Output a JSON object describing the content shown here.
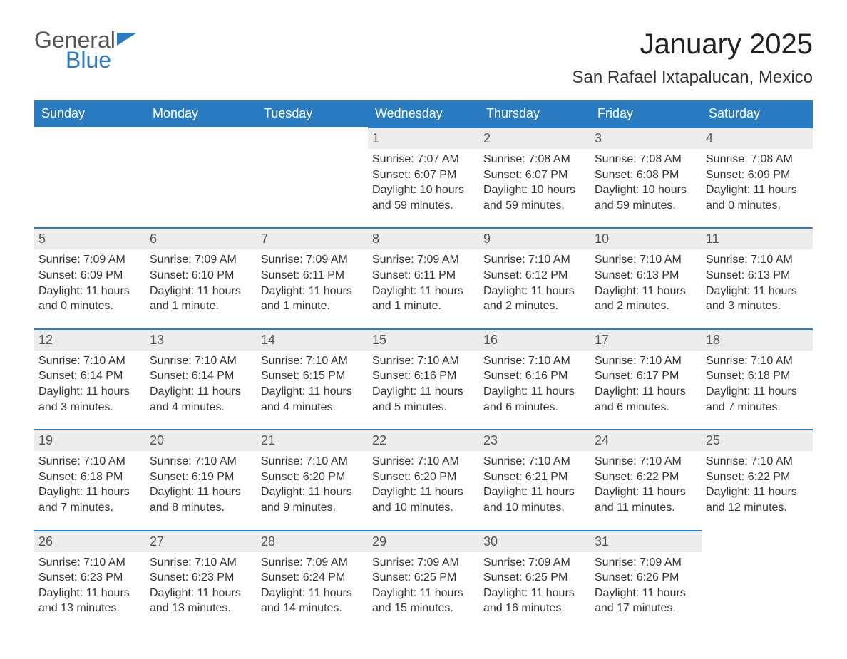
{
  "logo": {
    "textA": "General",
    "textB": "Blue"
  },
  "title": "January 2025",
  "location": "San Rafael Ixtapalucan, Mexico",
  "colors": {
    "accent": "#2a7bbf",
    "row_band": "#ececec",
    "text": "#333333",
    "bg": "#ffffff"
  },
  "typography": {
    "title_fontsize": 40,
    "location_fontsize": 24,
    "dow_fontsize": 18,
    "cell_fontsize": 16
  },
  "dow": [
    "Sunday",
    "Monday",
    "Tuesday",
    "Wednesday",
    "Thursday",
    "Friday",
    "Saturday"
  ],
  "leading_blanks": 3,
  "days": [
    {
      "n": "1",
      "sunrise": "Sunrise: 7:07 AM",
      "sunset": "Sunset: 6:07 PM",
      "daylight": "Daylight: 10 hours and 59 minutes."
    },
    {
      "n": "2",
      "sunrise": "Sunrise: 7:08 AM",
      "sunset": "Sunset: 6:07 PM",
      "daylight": "Daylight: 10 hours and 59 minutes."
    },
    {
      "n": "3",
      "sunrise": "Sunrise: 7:08 AM",
      "sunset": "Sunset: 6:08 PM",
      "daylight": "Daylight: 10 hours and 59 minutes."
    },
    {
      "n": "4",
      "sunrise": "Sunrise: 7:08 AM",
      "sunset": "Sunset: 6:09 PM",
      "daylight": "Daylight: 11 hours and 0 minutes."
    },
    {
      "n": "5",
      "sunrise": "Sunrise: 7:09 AM",
      "sunset": "Sunset: 6:09 PM",
      "daylight": "Daylight: 11 hours and 0 minutes."
    },
    {
      "n": "6",
      "sunrise": "Sunrise: 7:09 AM",
      "sunset": "Sunset: 6:10 PM",
      "daylight": "Daylight: 11 hours and 1 minute."
    },
    {
      "n": "7",
      "sunrise": "Sunrise: 7:09 AM",
      "sunset": "Sunset: 6:11 PM",
      "daylight": "Daylight: 11 hours and 1 minute."
    },
    {
      "n": "8",
      "sunrise": "Sunrise: 7:09 AM",
      "sunset": "Sunset: 6:11 PM",
      "daylight": "Daylight: 11 hours and 1 minute."
    },
    {
      "n": "9",
      "sunrise": "Sunrise: 7:10 AM",
      "sunset": "Sunset: 6:12 PM",
      "daylight": "Daylight: 11 hours and 2 minutes."
    },
    {
      "n": "10",
      "sunrise": "Sunrise: 7:10 AM",
      "sunset": "Sunset: 6:13 PM",
      "daylight": "Daylight: 11 hours and 2 minutes."
    },
    {
      "n": "11",
      "sunrise": "Sunrise: 7:10 AM",
      "sunset": "Sunset: 6:13 PM",
      "daylight": "Daylight: 11 hours and 3 minutes."
    },
    {
      "n": "12",
      "sunrise": "Sunrise: 7:10 AM",
      "sunset": "Sunset: 6:14 PM",
      "daylight": "Daylight: 11 hours and 3 minutes."
    },
    {
      "n": "13",
      "sunrise": "Sunrise: 7:10 AM",
      "sunset": "Sunset: 6:14 PM",
      "daylight": "Daylight: 11 hours and 4 minutes."
    },
    {
      "n": "14",
      "sunrise": "Sunrise: 7:10 AM",
      "sunset": "Sunset: 6:15 PM",
      "daylight": "Daylight: 11 hours and 4 minutes."
    },
    {
      "n": "15",
      "sunrise": "Sunrise: 7:10 AM",
      "sunset": "Sunset: 6:16 PM",
      "daylight": "Daylight: 11 hours and 5 minutes."
    },
    {
      "n": "16",
      "sunrise": "Sunrise: 7:10 AM",
      "sunset": "Sunset: 6:16 PM",
      "daylight": "Daylight: 11 hours and 6 minutes."
    },
    {
      "n": "17",
      "sunrise": "Sunrise: 7:10 AM",
      "sunset": "Sunset: 6:17 PM",
      "daylight": "Daylight: 11 hours and 6 minutes."
    },
    {
      "n": "18",
      "sunrise": "Sunrise: 7:10 AM",
      "sunset": "Sunset: 6:18 PM",
      "daylight": "Daylight: 11 hours and 7 minutes."
    },
    {
      "n": "19",
      "sunrise": "Sunrise: 7:10 AM",
      "sunset": "Sunset: 6:18 PM",
      "daylight": "Daylight: 11 hours and 7 minutes."
    },
    {
      "n": "20",
      "sunrise": "Sunrise: 7:10 AM",
      "sunset": "Sunset: 6:19 PM",
      "daylight": "Daylight: 11 hours and 8 minutes."
    },
    {
      "n": "21",
      "sunrise": "Sunrise: 7:10 AM",
      "sunset": "Sunset: 6:20 PM",
      "daylight": "Daylight: 11 hours and 9 minutes."
    },
    {
      "n": "22",
      "sunrise": "Sunrise: 7:10 AM",
      "sunset": "Sunset: 6:20 PM",
      "daylight": "Daylight: 11 hours and 10 minutes."
    },
    {
      "n": "23",
      "sunrise": "Sunrise: 7:10 AM",
      "sunset": "Sunset: 6:21 PM",
      "daylight": "Daylight: 11 hours and 10 minutes."
    },
    {
      "n": "24",
      "sunrise": "Sunrise: 7:10 AM",
      "sunset": "Sunset: 6:22 PM",
      "daylight": "Daylight: 11 hours and 11 minutes."
    },
    {
      "n": "25",
      "sunrise": "Sunrise: 7:10 AM",
      "sunset": "Sunset: 6:22 PM",
      "daylight": "Daylight: 11 hours and 12 minutes."
    },
    {
      "n": "26",
      "sunrise": "Sunrise: 7:10 AM",
      "sunset": "Sunset: 6:23 PM",
      "daylight": "Daylight: 11 hours and 13 minutes."
    },
    {
      "n": "27",
      "sunrise": "Sunrise: 7:10 AM",
      "sunset": "Sunset: 6:23 PM",
      "daylight": "Daylight: 11 hours and 13 minutes."
    },
    {
      "n": "28",
      "sunrise": "Sunrise: 7:09 AM",
      "sunset": "Sunset: 6:24 PM",
      "daylight": "Daylight: 11 hours and 14 minutes."
    },
    {
      "n": "29",
      "sunrise": "Sunrise: 7:09 AM",
      "sunset": "Sunset: 6:25 PM",
      "daylight": "Daylight: 11 hours and 15 minutes."
    },
    {
      "n": "30",
      "sunrise": "Sunrise: 7:09 AM",
      "sunset": "Sunset: 6:25 PM",
      "daylight": "Daylight: 11 hours and 16 minutes."
    },
    {
      "n": "31",
      "sunrise": "Sunrise: 7:09 AM",
      "sunset": "Sunset: 6:26 PM",
      "daylight": "Daylight: 11 hours and 17 minutes."
    }
  ]
}
